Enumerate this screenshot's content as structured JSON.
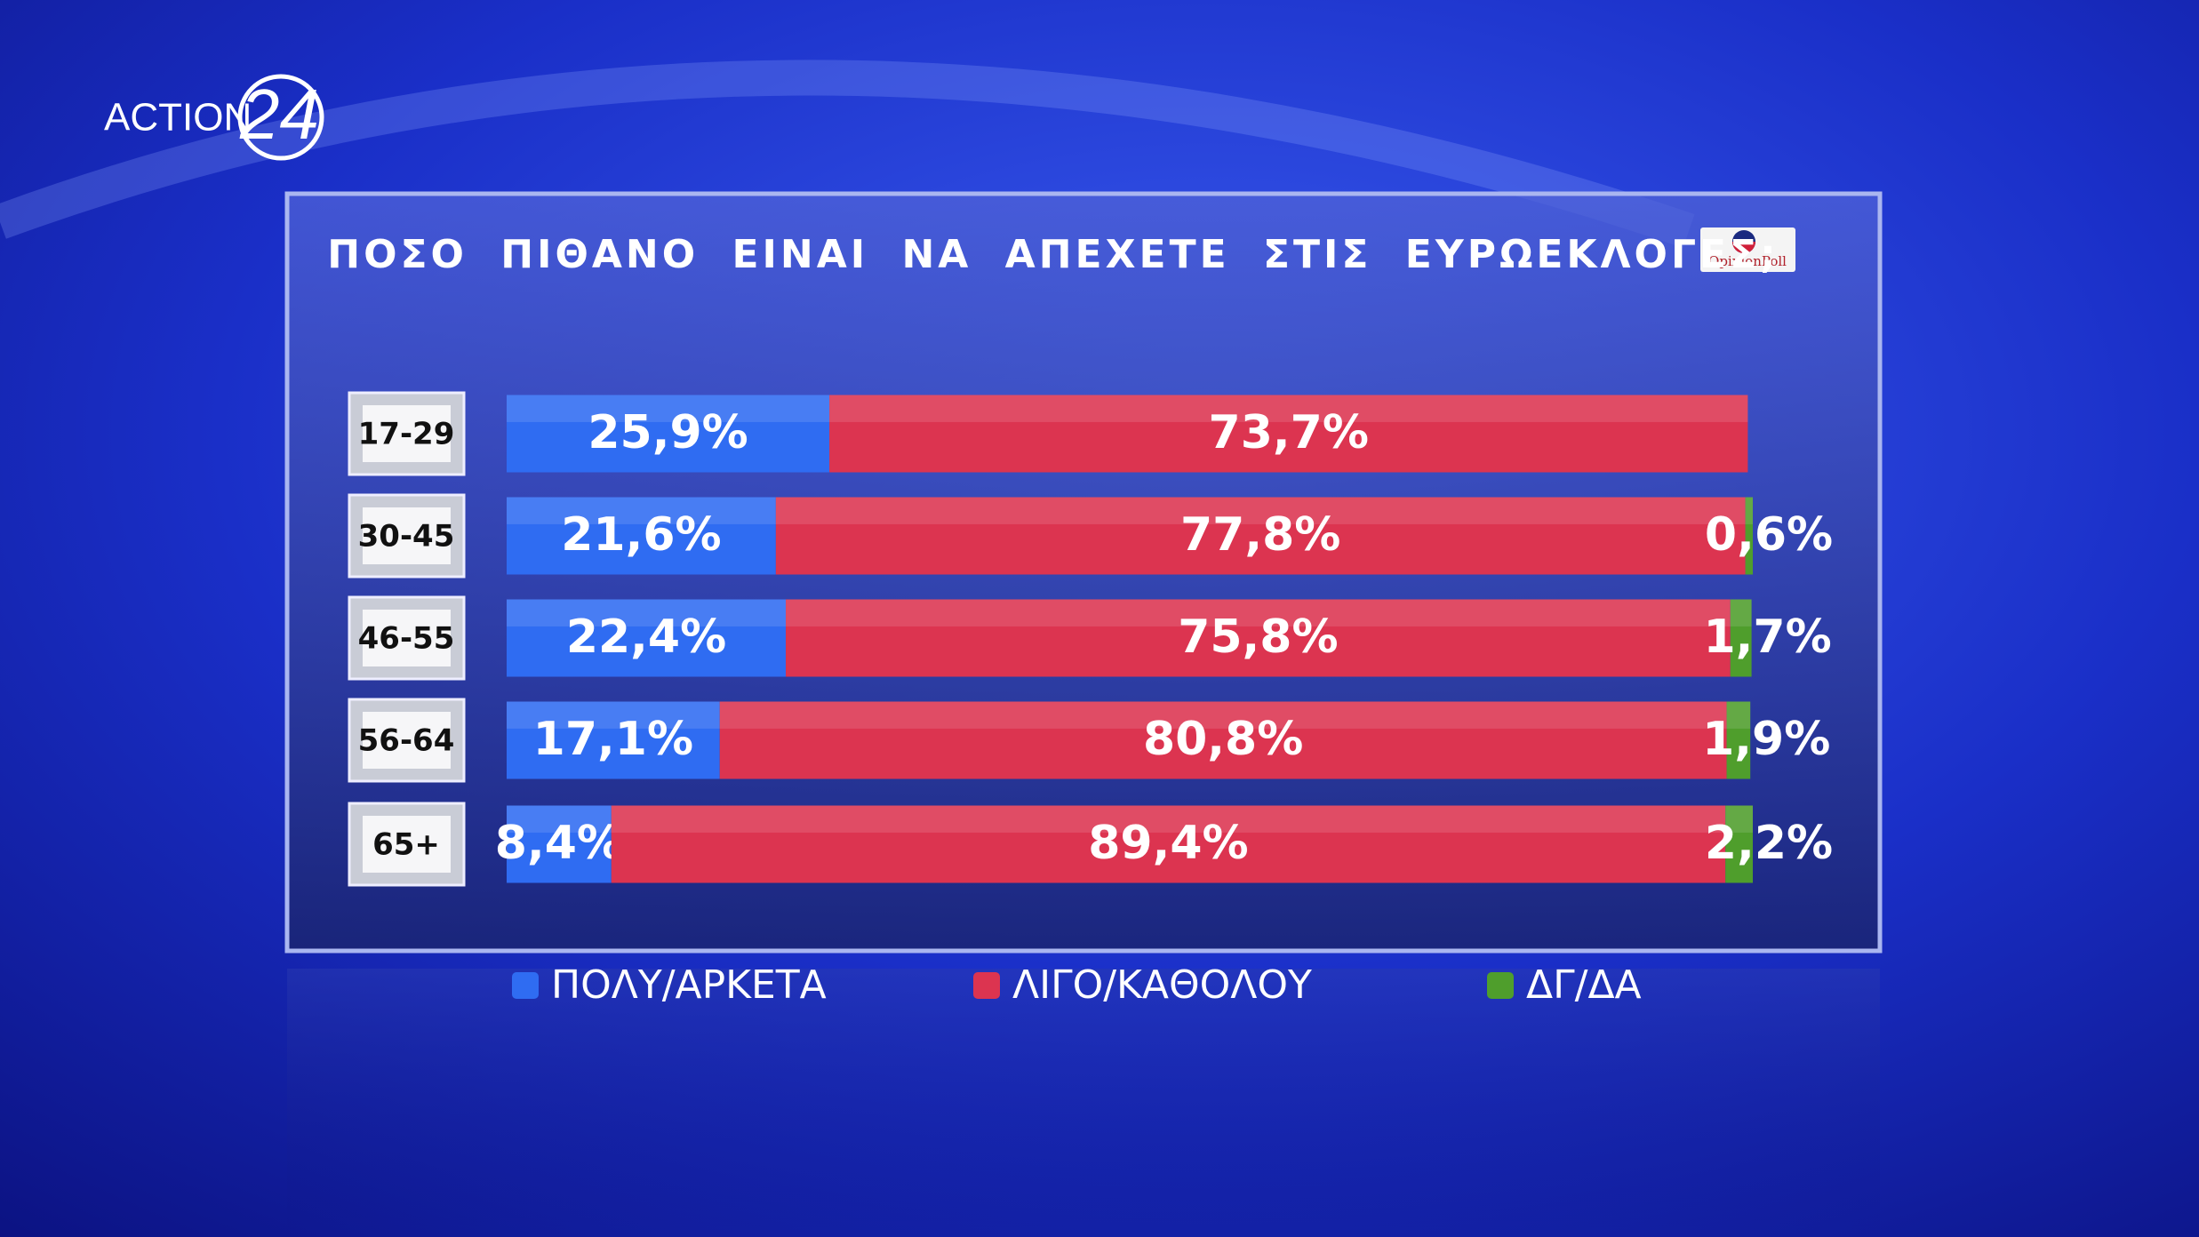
{
  "brand": {
    "channel": "ACTION",
    "channel_number": "24",
    "pollster": "OpinionPoll"
  },
  "chart_data": {
    "type": "stacked-bar-horizontal",
    "title": "ΠΟΣΟ ΠΙΘΑΝΟ ΕΙΝΑΙ ΝΑ ΑΠΕΧΕΤΕ ΣΤΙΣ ΕΥΡΩΕΚΛΟΓΕΣ;",
    "categories": [
      "17-29",
      "30-45",
      "46-55",
      "56-64",
      "65+"
    ],
    "xlim": [
      0,
      100
    ],
    "series": [
      {
        "name": "ΠΟΛΥ/ΑΡΚΕΤΑ",
        "color": "#2f6cf2",
        "values": [
          25.9,
          21.6,
          22.4,
          17.1,
          8.4
        ],
        "value_labels": [
          "25,9%",
          "21,6%",
          "22,4%",
          "17,1%",
          "8,4%"
        ]
      },
      {
        "name": "ΛΙΓΟ/ΚΑΘΟΛΟΥ",
        "color": "#dc3450",
        "values": [
          73.7,
          77.8,
          75.8,
          80.8,
          89.4
        ],
        "value_labels": [
          "73,7%",
          "77,8%",
          "75,8%",
          "80,8%",
          "89,4%"
        ]
      },
      {
        "name": "ΔΓ/ΔΑ",
        "color": "#4f9e2c",
        "values": [
          null,
          0.6,
          1.7,
          1.9,
          2.2
        ],
        "value_labels": [
          null,
          "0,6%",
          "1,7%",
          "1,9%",
          "2,2%"
        ]
      }
    ]
  }
}
